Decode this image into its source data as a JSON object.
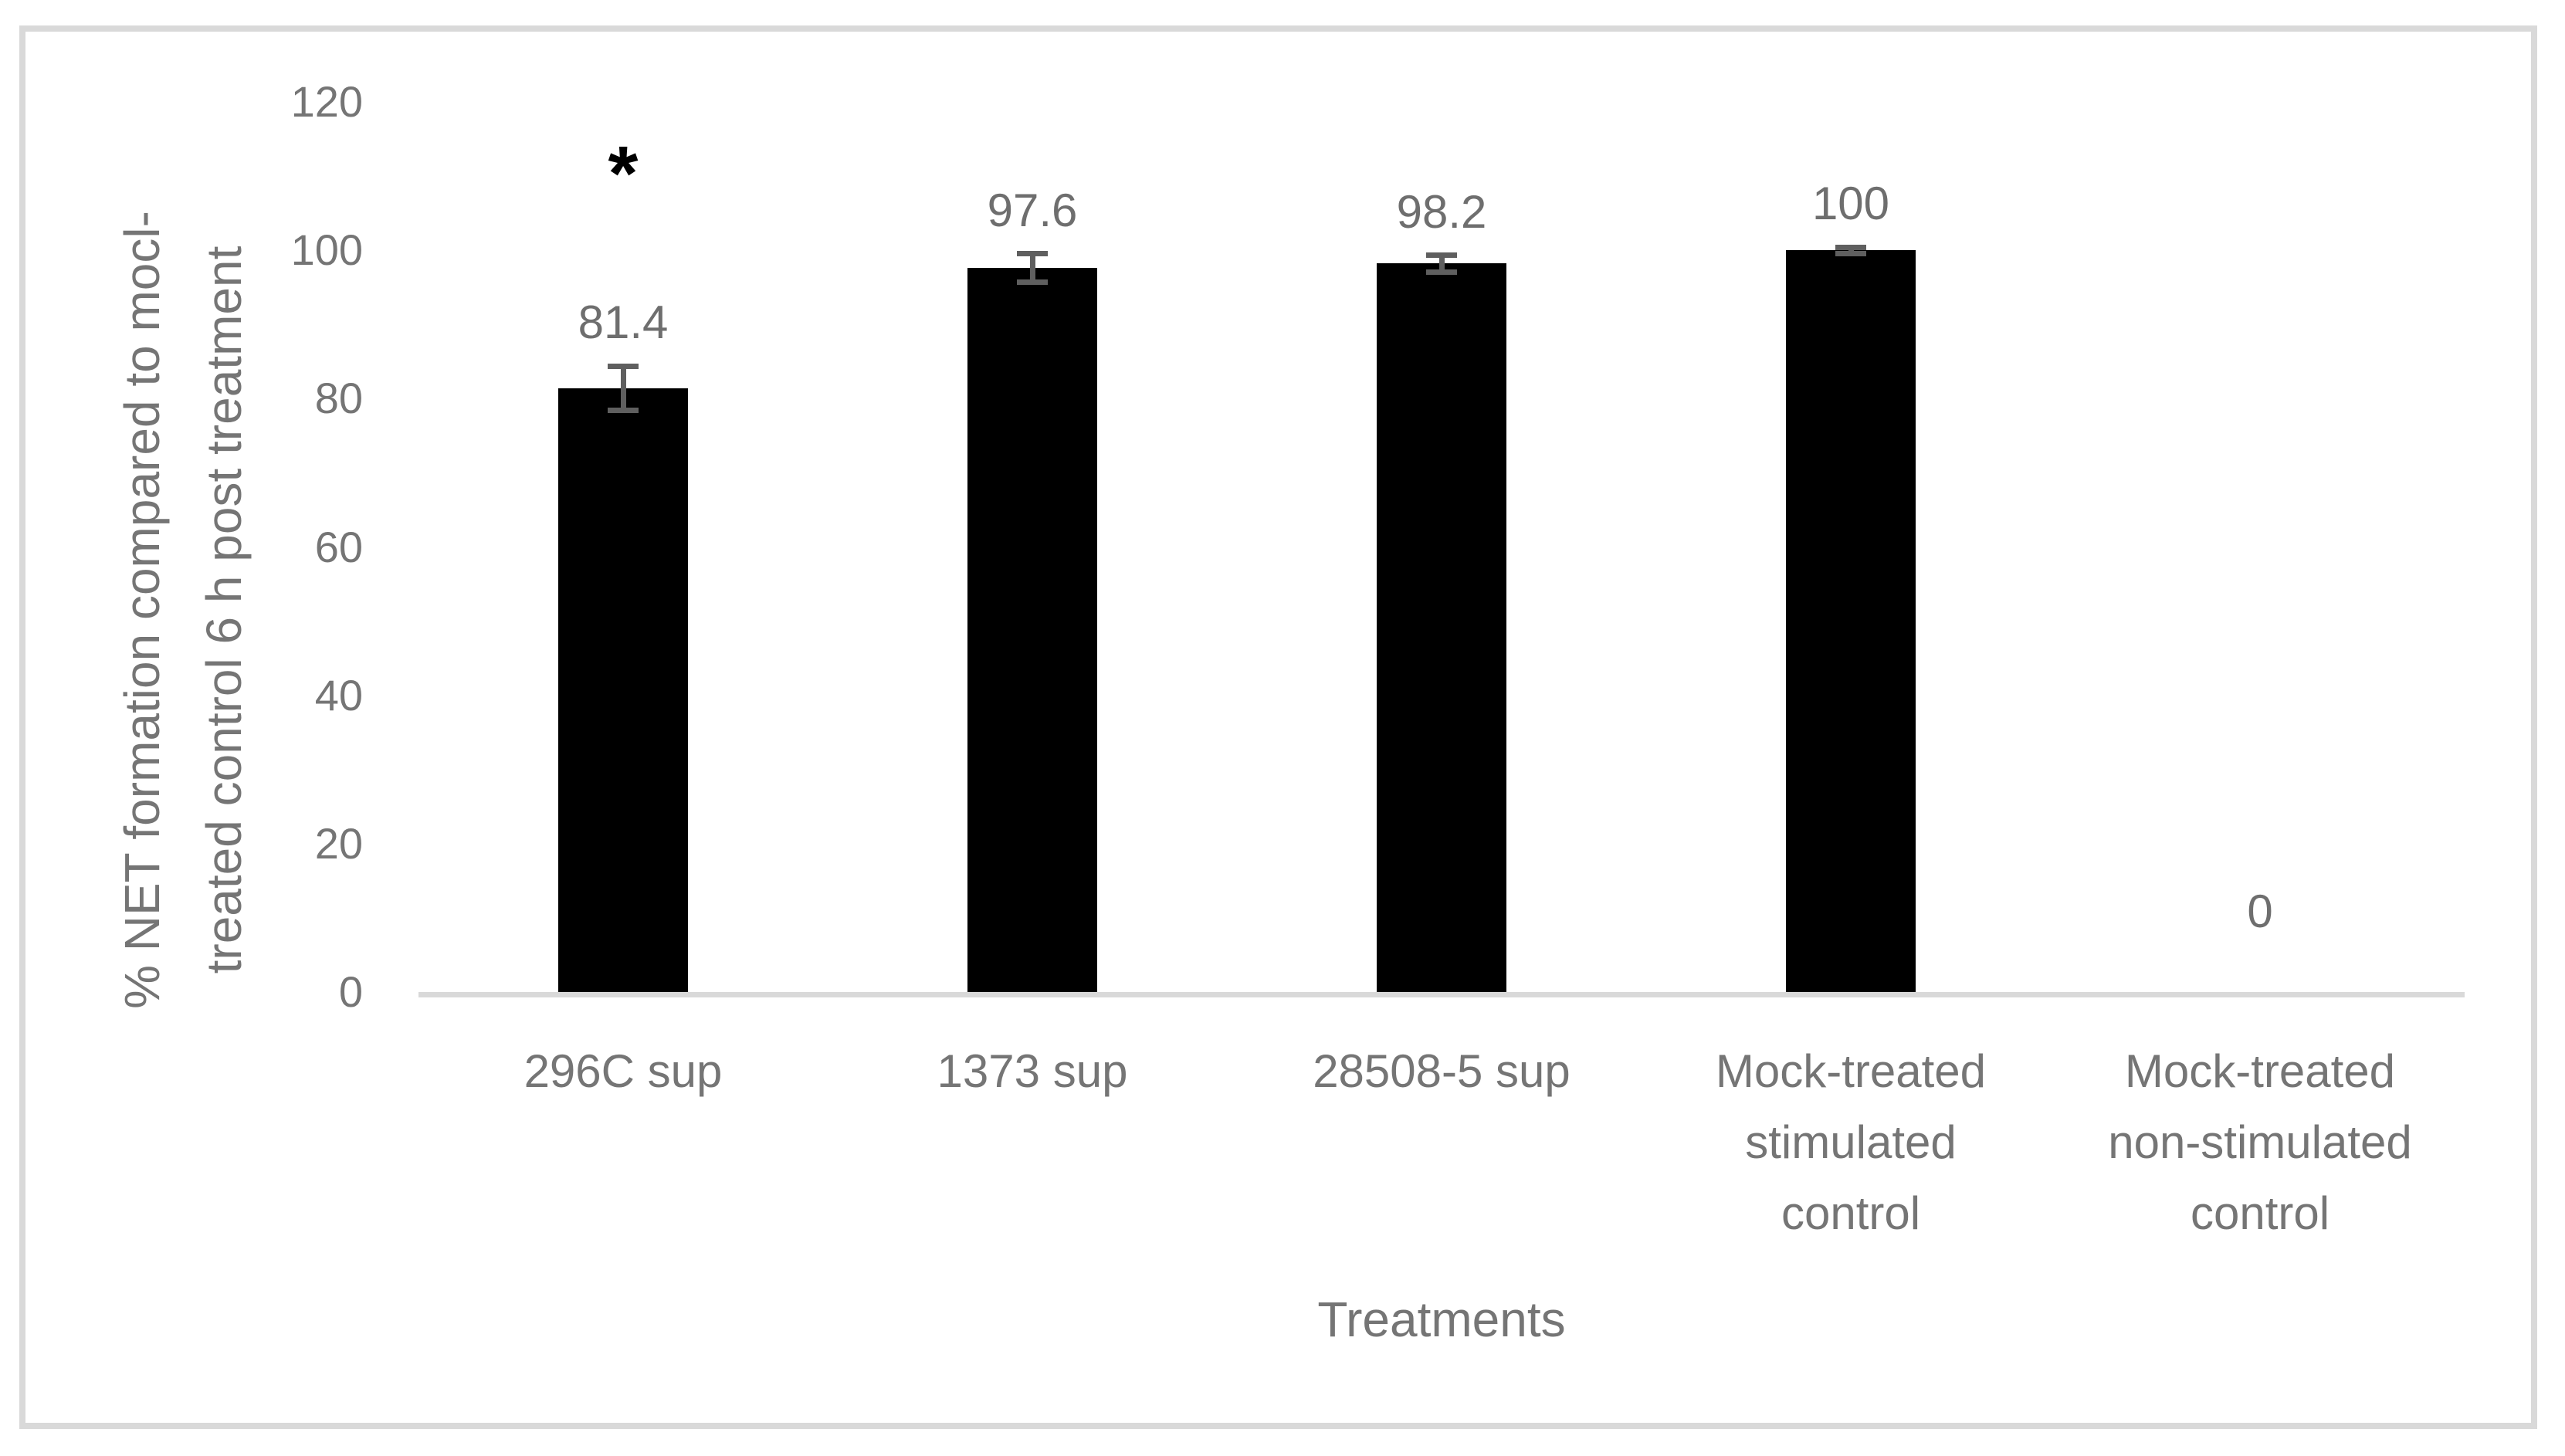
{
  "chart_data": {
    "type": "bar",
    "title": "",
    "categories": [
      "296C sup",
      "1373 sup",
      "28508-5 sup",
      "Mock-treated\nstimulated\ncontrol",
      "Mock-treated\nnon-stimulated\ncontrol"
    ],
    "values": [
      81.4,
      97.6,
      98.2,
      100,
      0
    ],
    "data_labels": [
      "81.4",
      "97.6",
      "98.2",
      "100",
      "0"
    ],
    "error_bars": [
      3.0,
      1.9,
      1.1,
      0.4,
      null
    ],
    "significance": [
      "*",
      null,
      null,
      null,
      null
    ],
    "xlabel": "Treatments",
    "ylabel_line1": "% NET formation compared to mocl-",
    "ylabel_line2": "treated control 6 h post treatment",
    "y_ticks": [
      0,
      20,
      40,
      60,
      80,
      100,
      120
    ],
    "ylim": [
      0,
      120
    ],
    "grid": false,
    "legend": "none",
    "colors": {
      "bar": "#000000",
      "axis_line": "#d9d9d9",
      "tick_text": "#757575",
      "label_text": "#6e6e6e",
      "error_bar": "#5f5f5f",
      "frame_border": "#d9d9d9",
      "significance": "#000000",
      "background": "#ffffff"
    }
  }
}
